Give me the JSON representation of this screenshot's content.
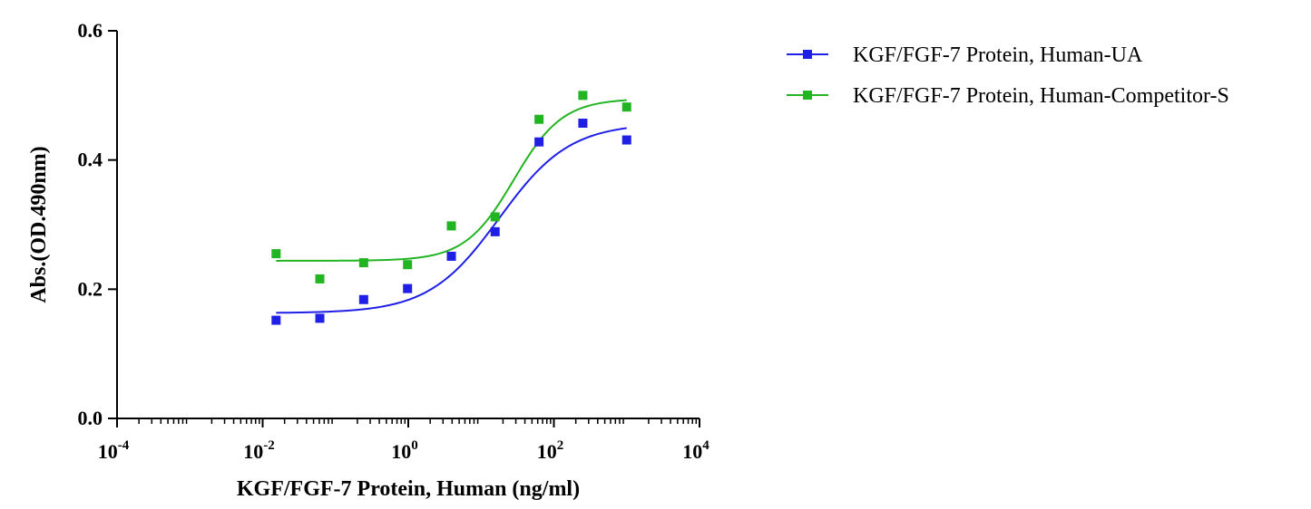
{
  "chart_data": {
    "type": "scatter",
    "xlabel": "KGF/FGF-7 Protein, Human (ng/ml)",
    "ylabel": "Abs.(OD.490nm)",
    "x_scale": "log10",
    "xlim": [
      0.0001,
      10000
    ],
    "ylim": [
      0,
      0.6
    ],
    "x_ticks": [
      {
        "value": 0.0001,
        "base": "10",
        "exp": "-4"
      },
      {
        "value": 0.01,
        "base": "10",
        "exp": "-2"
      },
      {
        "value": 1,
        "base": "10",
        "exp": "0"
      },
      {
        "value": 100,
        "base": "10",
        "exp": "2"
      },
      {
        "value": 10000,
        "base": "10",
        "exp": "4"
      }
    ],
    "y_ticks": [
      {
        "value": 0.0,
        "label": "0.0"
      },
      {
        "value": 0.2,
        "label": "0.2"
      },
      {
        "value": 0.4,
        "label": "0.4"
      },
      {
        "value": 0.6,
        "label": "0.6"
      }
    ],
    "grid": false,
    "legend_position": "top-right",
    "series": [
      {
        "name": "KGF/FGF-7 Protein, Human-UA",
        "color": "#1f1fe6",
        "marker": "square",
        "points": [
          {
            "x": 0.0153,
            "y": 0.152
          },
          {
            "x": 0.061,
            "y": 0.155
          },
          {
            "x": 0.244,
            "y": 0.184
          },
          {
            "x": 0.977,
            "y": 0.201
          },
          {
            "x": 3.91,
            "y": 0.251
          },
          {
            "x": 15.6,
            "y": 0.289
          },
          {
            "x": 62.5,
            "y": 0.428
          },
          {
            "x": 250,
            "y": 0.457
          },
          {
            "x": 1000,
            "y": 0.431
          }
        ],
        "fit": {
          "bottom": 0.163,
          "top": 0.457,
          "log_ec50": 1.25,
          "hill": 0.9
        }
      },
      {
        "name": "KGF/FGF-7 Protein, Human-Competitor-S",
        "color": "#22b422",
        "marker": "square",
        "points": [
          {
            "x": 0.0153,
            "y": 0.255
          },
          {
            "x": 0.061,
            "y": 0.216
          },
          {
            "x": 0.244,
            "y": 0.241
          },
          {
            "x": 0.977,
            "y": 0.238
          },
          {
            "x": 3.91,
            "y": 0.298
          },
          {
            "x": 15.6,
            "y": 0.312
          },
          {
            "x": 62.5,
            "y": 0.463
          },
          {
            "x": 250,
            "y": 0.5
          },
          {
            "x": 1000,
            "y": 0.482
          }
        ],
        "fit": {
          "bottom": 0.244,
          "top": 0.495,
          "log_ec50": 1.45,
          "hill": 1.3
        }
      }
    ]
  }
}
